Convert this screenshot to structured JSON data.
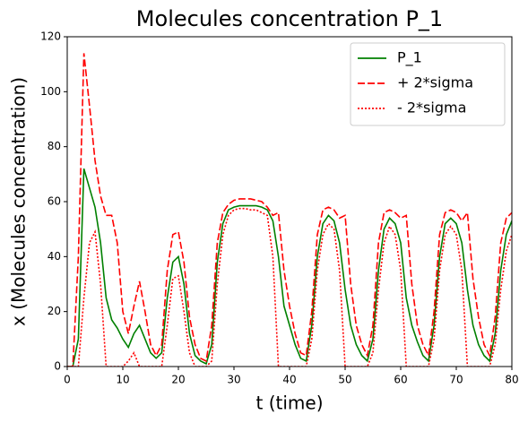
{
  "chart_data": {
    "type": "line",
    "title": "Molecules concentration P_1",
    "xlabel": "t (time)",
    "ylabel": "x (Molecules concentration)",
    "x": [
      0,
      1,
      2,
      3,
      4,
      5,
      6,
      7,
      8,
      9,
      10,
      11,
      12,
      13,
      14,
      15,
      16,
      17,
      18,
      19,
      20,
      21,
      22,
      23,
      24,
      25,
      26,
      27,
      28,
      29,
      30,
      31,
      32,
      33,
      34,
      35,
      36,
      37,
      38,
      39,
      40,
      41,
      42,
      43,
      44,
      45,
      46,
      47,
      48,
      49,
      50,
      51,
      52,
      53,
      54,
      55,
      56,
      57,
      58,
      59,
      60,
      61,
      62,
      63,
      64,
      65,
      66,
      67,
      68,
      69,
      70,
      71,
      72,
      73,
      74,
      75,
      76,
      77,
      78,
      79,
      80
    ],
    "series": [
      {
        "name": "P_1",
        "color": "#008000",
        "dash": "solid",
        "values": [
          0,
          0,
          10,
          72,
          65,
          58,
          45,
          25,
          17,
          14,
          10,
          7,
          12,
          15,
          10,
          5,
          3,
          5,
          25,
          38,
          40,
          30,
          12,
          4,
          2,
          1,
          8,
          38,
          52,
          57,
          58,
          58.5,
          58.5,
          58.5,
          58.5,
          58,
          57,
          53,
          40,
          22,
          15,
          8,
          3,
          2,
          15,
          40,
          52,
          55,
          53,
          45,
          28,
          15,
          8,
          4,
          2,
          10,
          35,
          50,
          54,
          52,
          45,
          25,
          15,
          9,
          4,
          2,
          15,
          40,
          52,
          54,
          52,
          45,
          28,
          15,
          8,
          4,
          2,
          12,
          35,
          48,
          53
        ]
      },
      {
        "name": "+ 2*sigma",
        "color": "#ff0000",
        "dash": "dashed",
        "values": [
          0,
          0,
          40,
          114,
          95,
          75,
          62,
          55,
          55,
          45,
          20,
          12,
          22,
          31,
          20,
          8,
          4,
          8,
          35,
          48,
          49,
          38,
          18,
          8,
          3,
          2,
          15,
          45,
          56,
          59,
          60.5,
          61,
          61,
          61,
          60.5,
          60,
          58,
          55,
          56,
          35,
          22,
          12,
          5,
          4,
          20,
          48,
          57,
          58,
          57,
          54,
          55,
          30,
          15,
          8,
          4,
          15,
          45,
          56,
          57,
          56,
          54,
          55,
          30,
          15,
          8,
          4,
          20,
          48,
          56,
          57,
          56,
          53,
          56,
          32,
          18,
          8,
          4,
          18,
          45,
          54,
          56
        ]
      },
      {
        "name": "- 2*sigma",
        "color": "#ff0000",
        "dash": "dotted",
        "values": [
          0,
          0,
          0,
          25,
          45,
          49,
          30,
          0,
          0,
          0,
          0,
          2,
          5,
          0,
          0,
          0,
          0,
          0,
          15,
          32,
          33,
          20,
          5,
          0,
          0,
          0,
          2,
          30,
          48,
          55,
          57,
          57.5,
          57.5,
          57,
          57,
          56,
          55,
          40,
          0,
          0,
          0,
          0,
          0,
          0,
          10,
          35,
          48,
          52,
          50,
          35,
          0,
          0,
          0,
          0,
          0,
          5,
          28,
          45,
          51,
          48,
          35,
          0,
          0,
          0,
          0,
          0,
          10,
          35,
          48,
          51,
          48,
          35,
          0,
          0,
          0,
          0,
          0,
          8,
          28,
          42,
          48
        ]
      }
    ],
    "xlim": [
      0,
      80
    ],
    "ylim": [
      0,
      120
    ],
    "xticks": [
      0,
      10,
      20,
      30,
      40,
      50,
      60,
      70,
      80
    ],
    "yticks": [
      0,
      20,
      40,
      60,
      80,
      100,
      120
    ],
    "legend": "upper right"
  }
}
